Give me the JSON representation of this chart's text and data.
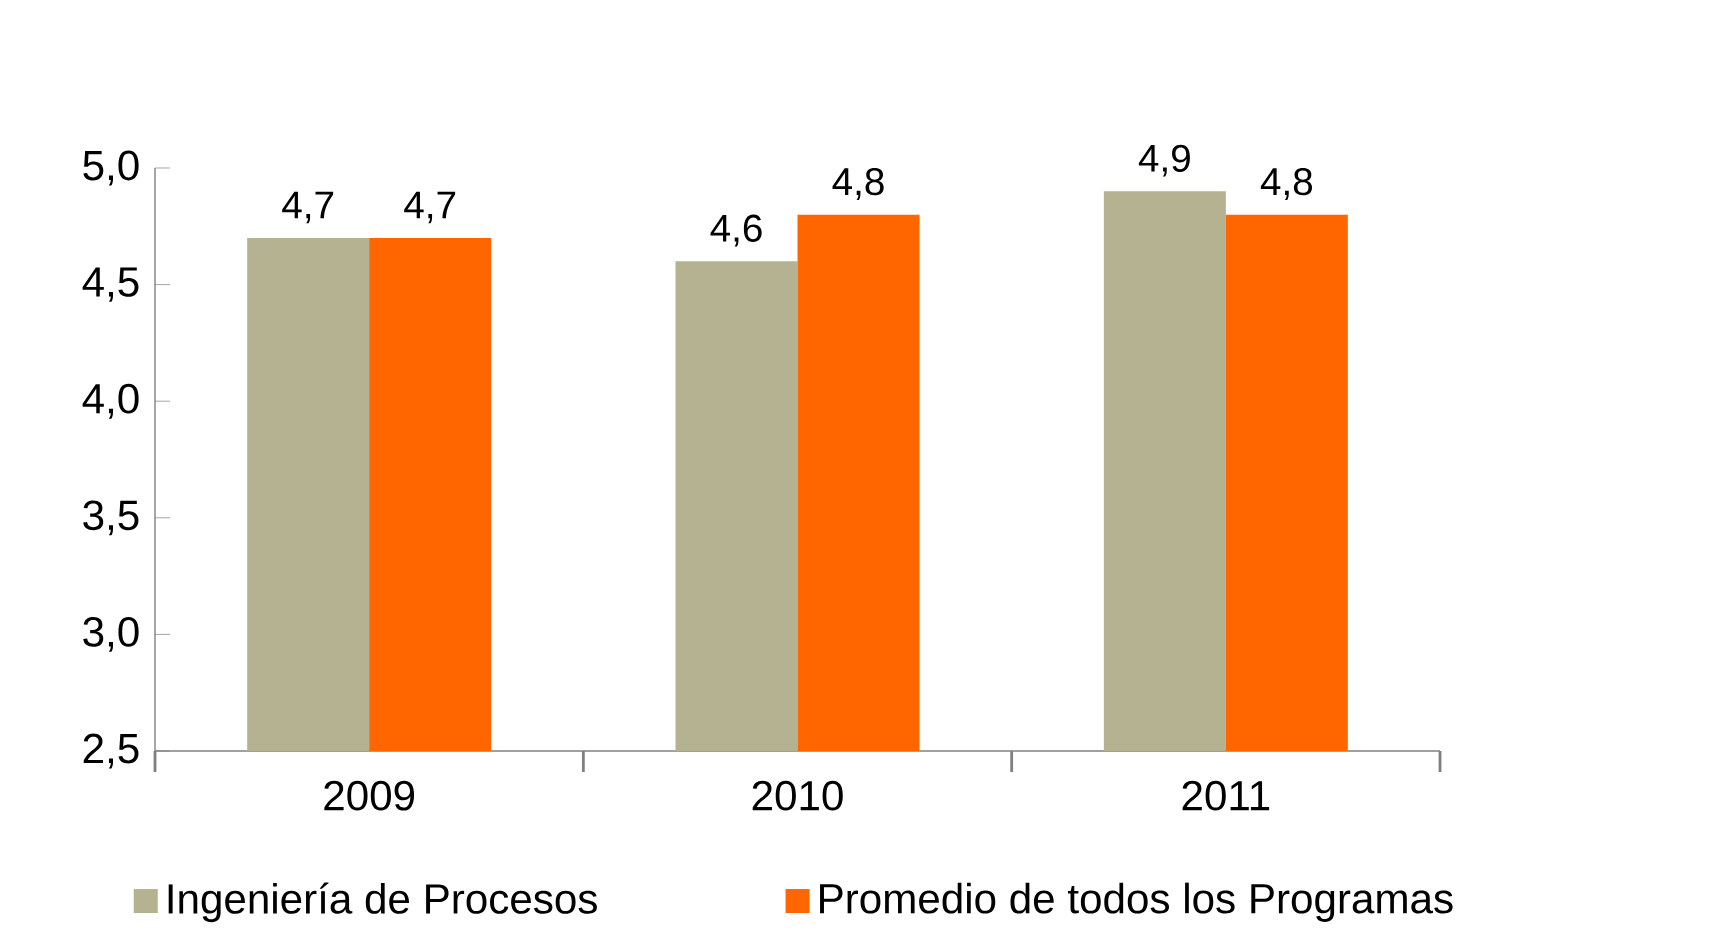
{
  "chart_data": {
    "type": "bar",
    "categories": [
      "2009",
      "2010",
      "2011"
    ],
    "series": [
      {
        "name": "Ingeniería de Procesos",
        "color": "#b5b291",
        "values": [
          4.7,
          4.6,
          4.9
        ],
        "value_labels": [
          "4,7",
          "4,6",
          "4,9"
        ]
      },
      {
        "name": "Promedio de todos los Programas",
        "color": "#ff6600",
        "values": [
          4.7,
          4.8,
          4.8
        ],
        "value_labels": [
          "4,7",
          "4,8",
          "4,8"
        ]
      }
    ],
    "ylim": [
      2.5,
      5.0
    ],
    "yticks": [
      {
        "value": 2.5,
        "label": "2,5"
      },
      {
        "value": 3.0,
        "label": "3,0"
      },
      {
        "value": 3.5,
        "label": "3,5"
      },
      {
        "value": 4.0,
        "label": "4,0"
      },
      {
        "value": 4.5,
        "label": "4,5"
      },
      {
        "value": 5.0,
        "label": "5,0"
      }
    ],
    "legend": "bottom",
    "grid": false
  }
}
